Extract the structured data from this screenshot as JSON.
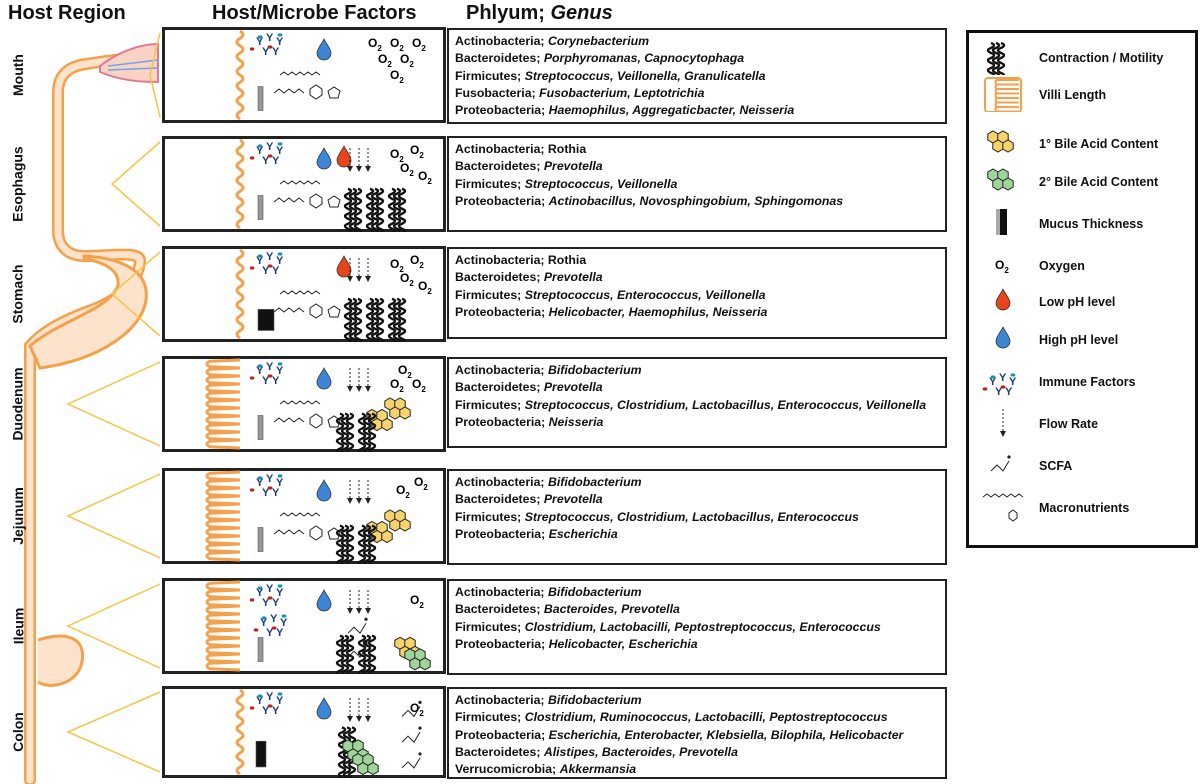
{
  "headers": {
    "host_region": "Host Region",
    "factors": "Host/Microbe Factors",
    "phylum_prefix": "Phlyum; ",
    "phylum_genus": "Genus"
  },
  "regions": [
    {
      "name": "Mouth",
      "taxa": [
        {
          "p": "Actinobacteria; ",
          "g": "Corynebacterium"
        },
        {
          "p": "Bacteroidetes; ",
          "g": "Porphyromanas, Capnocytophaga"
        },
        {
          "p": "Firmicutes; ",
          "g": "Streptococcus, Veillonella, Granulicatella"
        },
        {
          "p": "Fusobacteria; ",
          "g": "Fusobacterium, Leptotrichia"
        },
        {
          "p": "Proteobacteria; ",
          "g": "Haemophilus, Aggregaticbacter, Neisseria"
        }
      ]
    },
    {
      "name": "Esophagus",
      "taxa": [
        {
          "p": "Actinobacteria; Rothia",
          "g": ""
        },
        {
          "p": "Bacteroidetes; ",
          "g": "Prevotella"
        },
        {
          "p": "Firmicutes; ",
          "g": "Streptococcus, Veillonella"
        },
        {
          "p": "Proteobacteria; ",
          "g": "Actinobacillus, Novosphingobium, Sphingomonas"
        }
      ]
    },
    {
      "name": "Stomach",
      "taxa": [
        {
          "p": "Actinobacteria; Rothia",
          "g": ""
        },
        {
          "p": "Bacteroidetes; ",
          "g": "Prevotella"
        },
        {
          "p": "Firmicutes; ",
          "g": "Streptococcus, Enterococcus, Veillonella"
        },
        {
          "p": "Proteobacteria; ",
          "g": "Helicobacter, Haemophilus, Neisseria"
        }
      ]
    },
    {
      "name": "Duodenum",
      "taxa": [
        {
          "p": "Actinobacteria; ",
          "g": "Bifidobacterium"
        },
        {
          "p": "Bacteroidetes; ",
          "g": "Prevotella"
        },
        {
          "p": "Firmicutes; ",
          "g": "Streptococcus, Clostridium, Lactobacillus, Enterococcus, Veillonella"
        },
        {
          "p": "Proteobacteria; ",
          "g": "Neisseria"
        }
      ]
    },
    {
      "name": "Jejunum",
      "taxa": [
        {
          "p": "Actinobacteria; ",
          "g": "Bifidobacterium"
        },
        {
          "p": "Bacteroidetes; ",
          "g": "Prevotella"
        },
        {
          "p": "Firmicutes; ",
          "g": "Streptococcus, Clostridium, Lactobacillus, Enterococcus"
        },
        {
          "p": "Proteobacteria; ",
          "g": "Escherichia"
        }
      ]
    },
    {
      "name": "Ileum",
      "taxa": [
        {
          "p": "Actinobacteria; ",
          "g": "Bifidobacterium"
        },
        {
          "p": "Bacteroidetes; ",
          "g": "Bacteroides, Prevotella"
        },
        {
          "p": "Firmicutes; ",
          "g": "Clostridium, Lactobacilli, Peptostreptococcus, Enterococcus"
        },
        {
          "p": "Proteobacteria; ",
          "g": "Helicobacter, Escherichia"
        }
      ]
    },
    {
      "name": "Colon",
      "taxa": [
        {
          "p": "Actinobacteria; ",
          "g": "Bifidobacterium"
        },
        {
          "p": "Firmicutes; ",
          "g": "Clostridium, Ruminococcus, Lactobacilli, Peptostreptococcus"
        },
        {
          "p": "Proteobacteria; ",
          "g": "Escherichia, Enterobacter, Klebsiella, Bilophila, Helicobacter"
        },
        {
          "p": "Bacteroidetes; ",
          "g": "Alistipes, Bacteroides, Prevotella"
        },
        {
          "p": "Verrucomicrobia; ",
          "g": "Akkermansia"
        }
      ]
    }
  ],
  "legend": [
    {
      "icon": "contraction-icon",
      "label": "Contraction / Motility"
    },
    {
      "icon": "villi-icon",
      "label": "Villi Length"
    },
    {
      "icon": "primary-bile-icon",
      "label": "1° Bile Acid Content"
    },
    {
      "icon": "secondary-bile-icon",
      "label": "2° Bile Acid Content"
    },
    {
      "icon": "mucus-icon",
      "label": "Mucus Thickness"
    },
    {
      "icon": "oxygen-icon",
      "label": "Oxygen"
    },
    {
      "icon": "low-ph-icon",
      "label": "Low pH level"
    },
    {
      "icon": "high-ph-icon",
      "label": "High pH level"
    },
    {
      "icon": "immune-icon",
      "label": "Immune Factors"
    },
    {
      "icon": "flow-icon",
      "label": "Flow Rate"
    },
    {
      "icon": "scfa-icon",
      "label": "SCFA"
    },
    {
      "icon": "macronutrient-icon",
      "label": "Macronutrients"
    }
  ],
  "o2_symbol": "O",
  "o2_sub": "2",
  "colors": {
    "gut": "#f5a04a",
    "gut_fill": "#fde2cc",
    "cone": "#f4c542",
    "primary_bile": "#f6d36b",
    "secondary_bile": "#9fd49a",
    "low_ph": "#e8441a",
    "high_ph": "#3d86d6"
  }
}
